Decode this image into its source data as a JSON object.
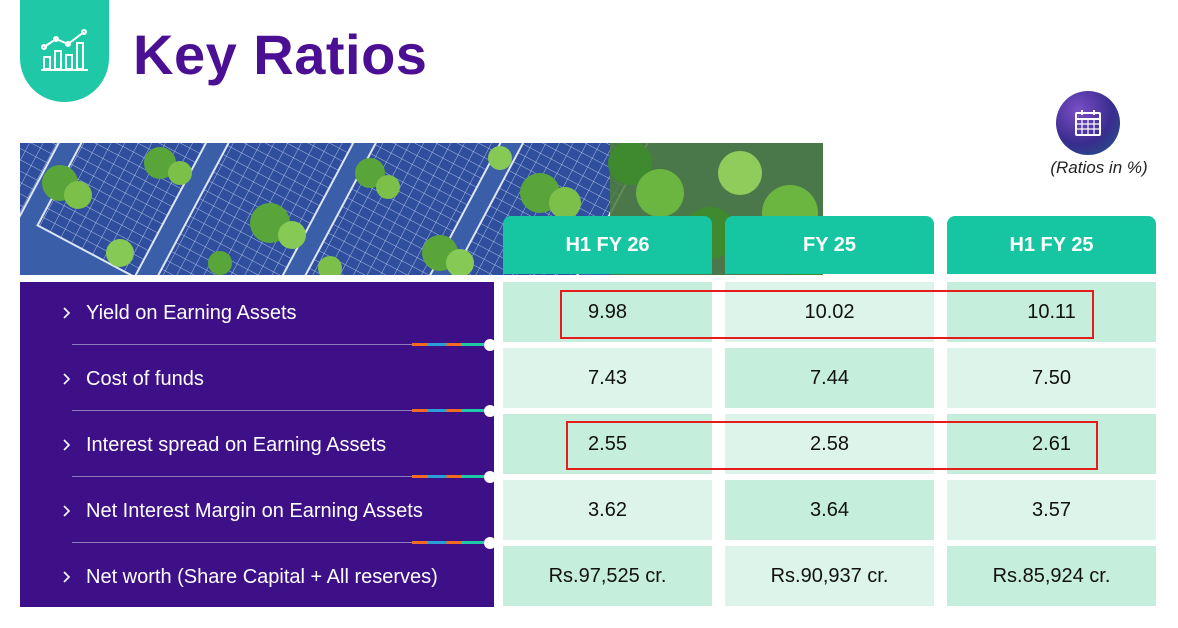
{
  "header": {
    "title": "Key Ratios",
    "icon": "growth-chart-icon"
  },
  "units": {
    "icon": "calendar-icon",
    "note": "(Ratios in %)"
  },
  "banner": {
    "image": "solar-panels-and-trees"
  },
  "table": {
    "columns": [
      "H1 FY 26",
      "FY 25",
      "H1 FY 25"
    ],
    "rows": [
      {
        "label": "Yield on Earning Assets",
        "values": [
          "9.98",
          "10.02",
          "10.11"
        ],
        "highlighted": true
      },
      {
        "label": "Cost of funds",
        "values": [
          "7.43",
          "7.44",
          "7.50"
        ],
        "highlighted": false
      },
      {
        "label": "Interest spread on Earning Assets",
        "values": [
          "2.55",
          "2.58",
          "2.61"
        ],
        "highlighted": true
      },
      {
        "label": "Net Interest Margin on Earning Assets",
        "values": [
          "3.62",
          "3.64",
          "3.57"
        ],
        "highlighted": false
      },
      {
        "label": "Net worth (Share Capital + All reserves)",
        "values": [
          "Rs.97,525 cr.",
          "Rs.90,937 cr.",
          "Rs.85,924 cr."
        ],
        "highlighted": false
      }
    ]
  },
  "colors": {
    "title": "#4b0f94",
    "accent_teal": "#16c6a2",
    "label_panel": "#3e1088",
    "highlight": "#e41c1c"
  }
}
